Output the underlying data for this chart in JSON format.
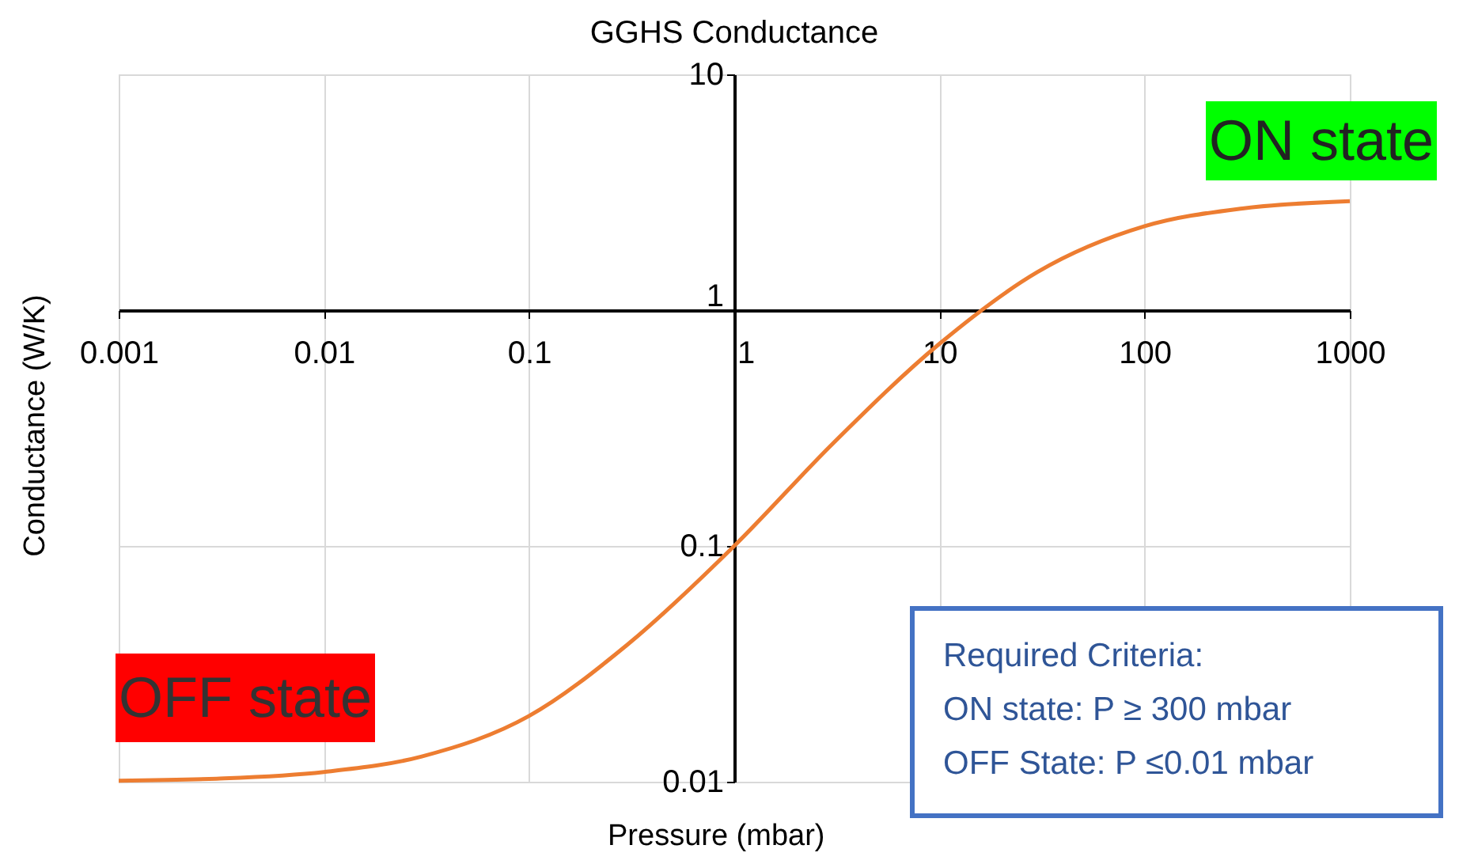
{
  "chart_data": {
    "type": "line",
    "title": "GGHS Conductance",
    "xlabel": "Pressure (mbar)",
    "ylabel": "Conductance (W/K)",
    "log": "xy",
    "grid": true,
    "x": [
      0.001,
      0.003,
      0.01,
      0.03,
      0.1,
      0.3,
      1,
      3,
      10,
      30,
      100,
      300,
      1000
    ],
    "series": [
      {
        "color": "#ed7d31",
        "values": [
          0.0101,
          0.0103,
          0.011,
          0.0128,
          0.019,
          0.038,
          0.1,
          0.27,
          0.72,
          1.45,
          2.27,
          2.7,
          2.9
        ]
      }
    ],
    "xlim": [
      0.001,
      1000
    ],
    "ylim": [
      0.01,
      10
    ],
    "xticks": [
      0.001,
      0.01,
      0.1,
      1,
      10,
      100,
      1000
    ],
    "yticks": [
      0.01,
      0.1,
      1,
      10
    ],
    "annotations": [
      "ON state",
      "OFF state",
      "Required Criteria:",
      "ON state: P ≥ 300 mbar",
      "OFF State: P ≤0.01 mbar"
    ]
  }
}
